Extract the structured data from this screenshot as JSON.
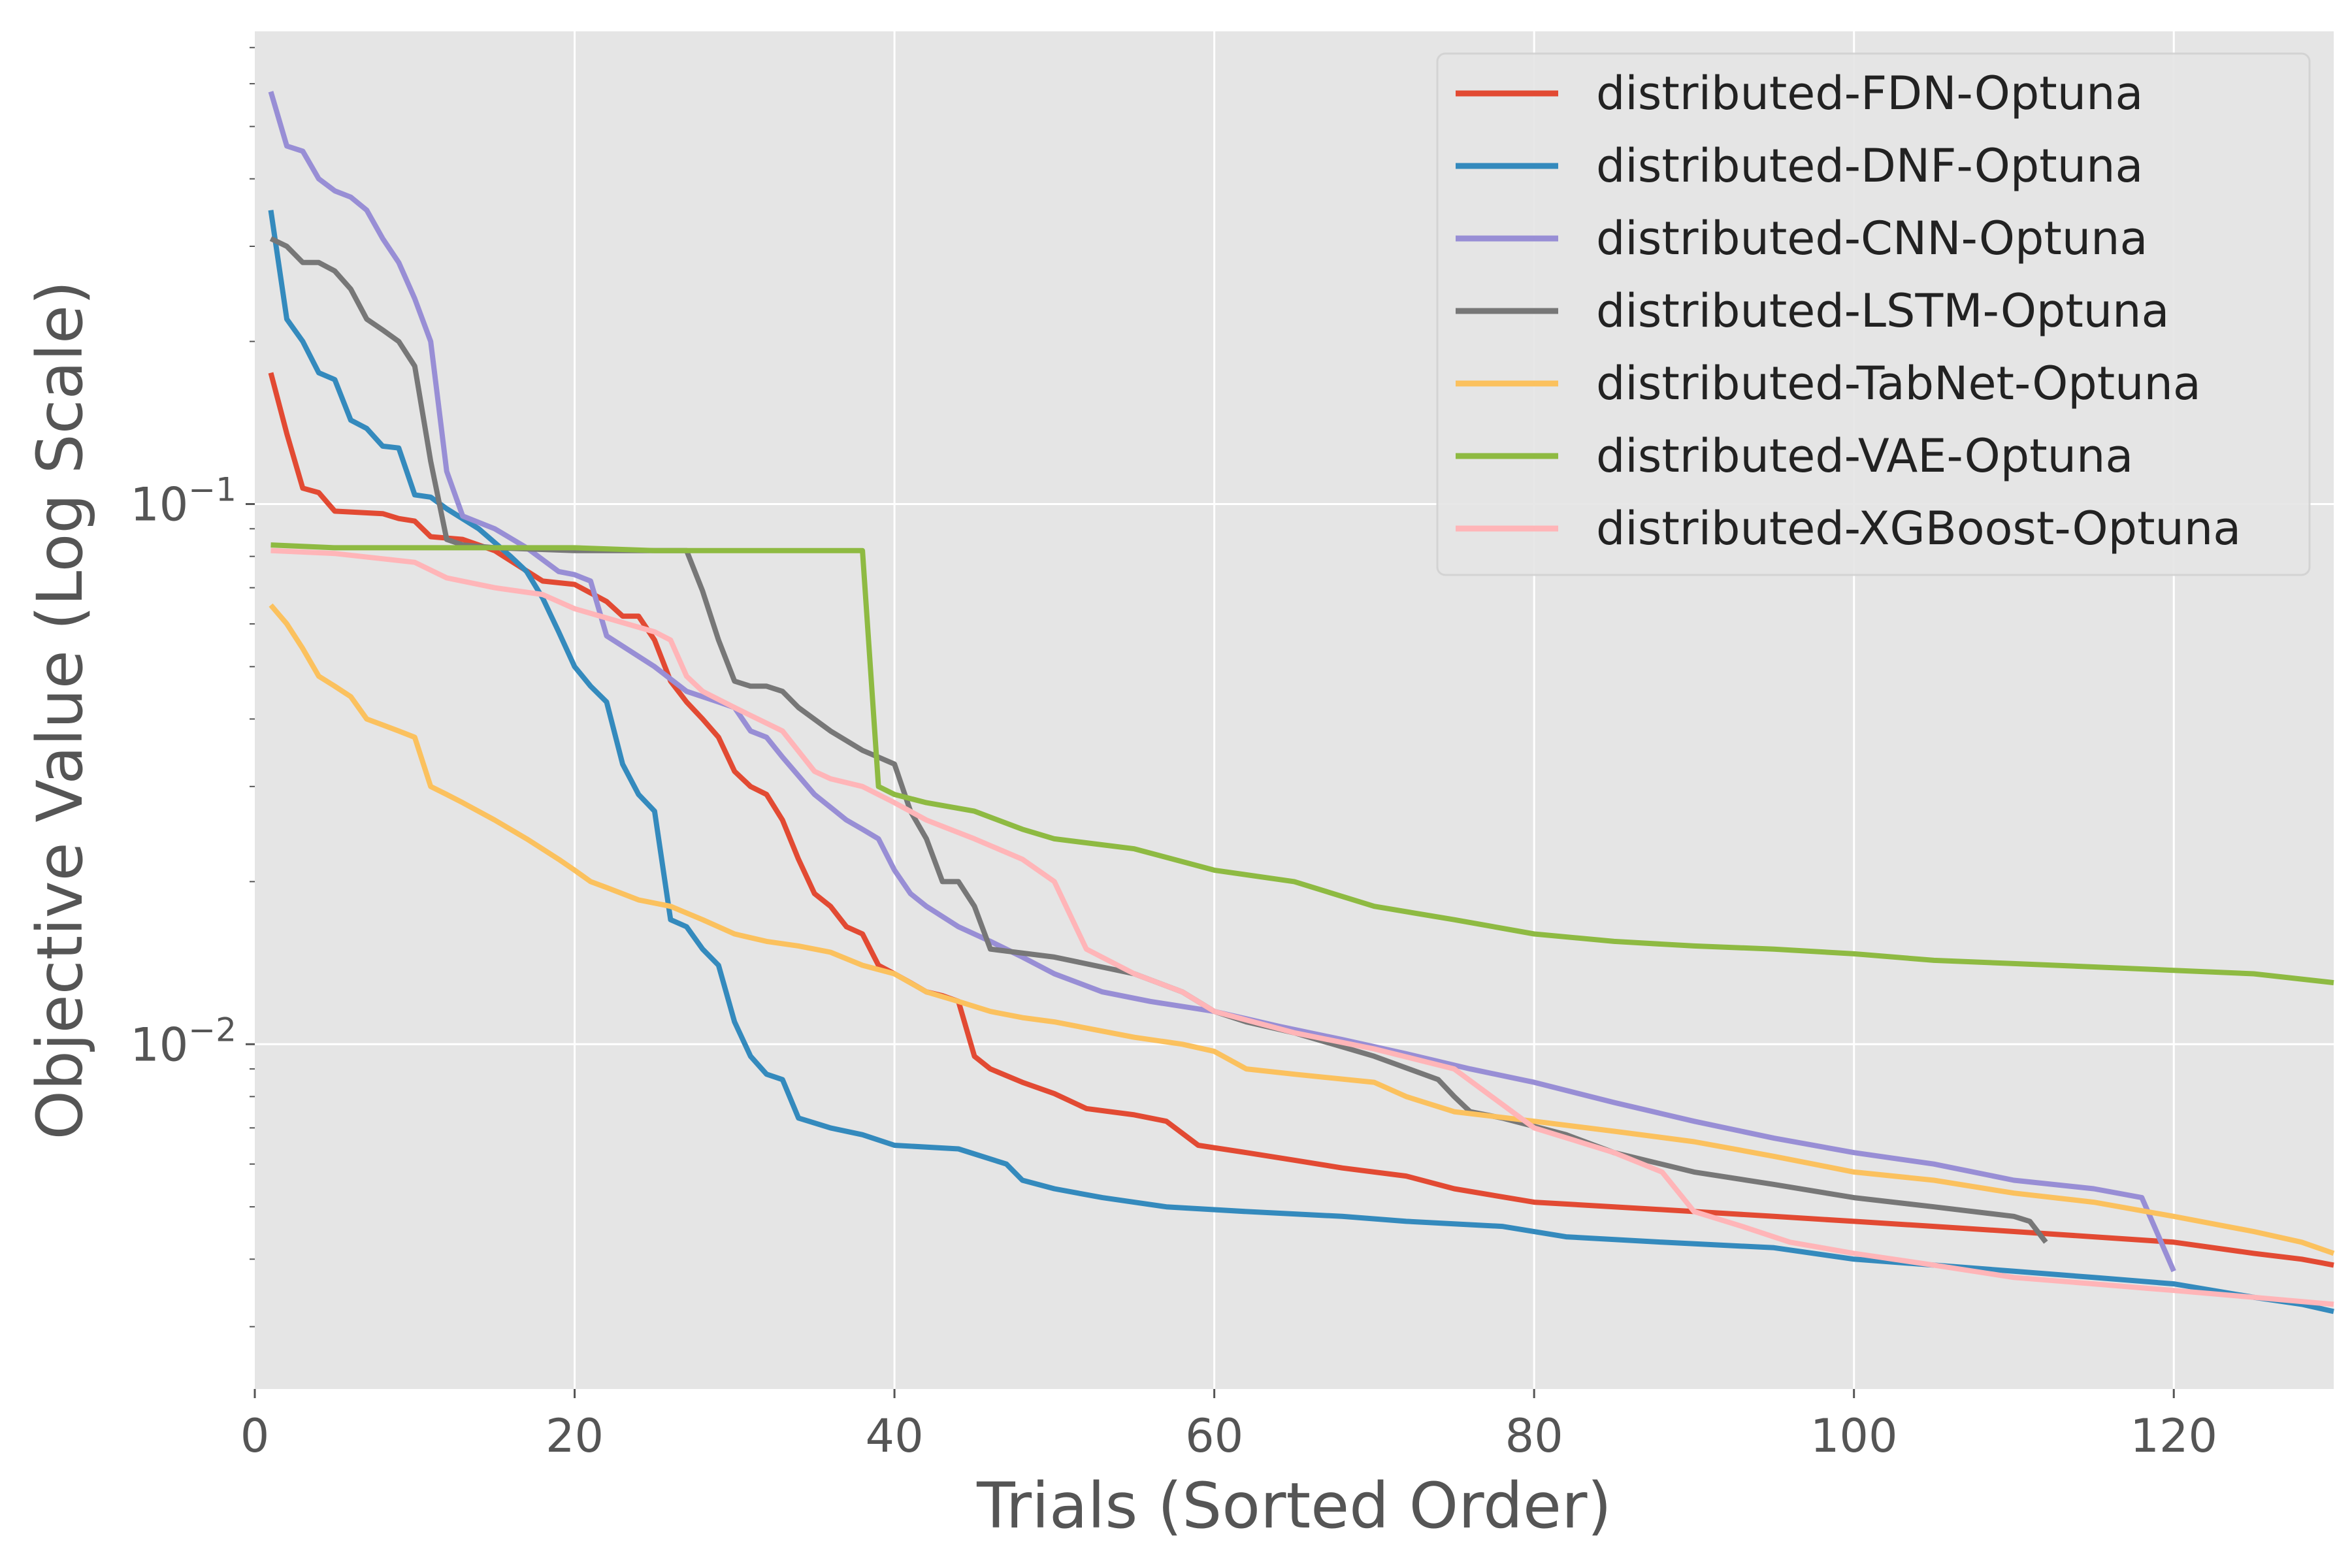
{
  "chart_data": {
    "type": "line",
    "title": "",
    "xlabel": "Trials (Sorted Order)",
    "ylabel": "Objective Value (Log Scale)",
    "xlim": [
      0,
      130
    ],
    "ylim": [
      0.0023,
      0.75
    ],
    "yscale": "log",
    "grid": true,
    "legend_position": "top-right",
    "background": "#e5e5e5",
    "x_ticks": [
      {
        "value": 0,
        "label": "0"
      },
      {
        "value": 20,
        "label": "20"
      },
      {
        "value": 40,
        "label": "40"
      },
      {
        "value": 60,
        "label": "60"
      },
      {
        "value": 80,
        "label": "80"
      },
      {
        "value": 100,
        "label": "100"
      },
      {
        "value": 120,
        "label": "120"
      }
    ],
    "y_ticks": [
      {
        "value": 0.1,
        "base": "10",
        "exp": "−1"
      },
      {
        "value": 0.01,
        "base": "10",
        "exp": "−2"
      }
    ],
    "series": [
      {
        "name": "distributed-FDN-Optuna",
        "color": "#E24A33",
        "x": [
          1,
          2,
          3,
          4,
          5,
          8,
          9,
          10,
          11,
          13,
          15,
          18,
          20,
          22,
          23,
          24,
          25,
          26,
          27,
          28,
          29,
          30,
          31,
          32,
          33,
          34,
          35,
          36,
          37,
          38,
          39,
          40,
          41,
          42,
          43,
          44,
          45,
          46,
          48,
          50,
          52,
          55,
          57,
          59,
          62,
          65,
          68,
          72,
          75,
          80,
          85,
          90,
          95,
          100,
          105,
          110,
          115,
          120,
          125,
          128,
          130
        ],
        "y": [
          0.175,
          0.135,
          0.107,
          0.105,
          0.097,
          0.096,
          0.094,
          0.093,
          0.087,
          0.086,
          0.082,
          0.072,
          0.071,
          0.066,
          0.062,
          0.062,
          0.056,
          0.047,
          0.043,
          0.04,
          0.037,
          0.032,
          0.03,
          0.029,
          0.026,
          0.022,
          0.019,
          0.018,
          0.0165,
          0.016,
          0.014,
          0.0135,
          0.013,
          0.0125,
          0.0123,
          0.012,
          0.0095,
          0.009,
          0.0085,
          0.0081,
          0.0076,
          0.0074,
          0.0072,
          0.0065,
          0.0063,
          0.0061,
          0.0059,
          0.0057,
          0.0054,
          0.0051,
          0.005,
          0.0049,
          0.0048,
          0.0047,
          0.0046,
          0.0045,
          0.0044,
          0.0043,
          0.0041,
          0.004,
          0.0039
        ]
      },
      {
        "name": "distributed-DNF-Optuna",
        "color": "#348ABD",
        "x": [
          1,
          2,
          3,
          4,
          5,
          6,
          7,
          8,
          9,
          10,
          11,
          12,
          14,
          16,
          17,
          18,
          19,
          20,
          21,
          22,
          23,
          24,
          25,
          26,
          27,
          28,
          29,
          30,
          31,
          32,
          33,
          34,
          36,
          38,
          40,
          44,
          47,
          48,
          50,
          53,
          57,
          62,
          68,
          72,
          78,
          82,
          88,
          95,
          100,
          105,
          110,
          115,
          120,
          125,
          128,
          130
        ],
        "y": [
          0.35,
          0.22,
          0.2,
          0.175,
          0.17,
          0.143,
          0.138,
          0.128,
          0.127,
          0.104,
          0.103,
          0.098,
          0.09,
          0.08,
          0.075,
          0.067,
          0.058,
          0.05,
          0.046,
          0.043,
          0.033,
          0.029,
          0.027,
          0.017,
          0.0165,
          0.015,
          0.014,
          0.011,
          0.0095,
          0.0088,
          0.0086,
          0.0073,
          0.007,
          0.0068,
          0.0065,
          0.0064,
          0.006,
          0.0056,
          0.0054,
          0.0052,
          0.005,
          0.0049,
          0.0048,
          0.0047,
          0.0046,
          0.0044,
          0.0043,
          0.0042,
          0.004,
          0.0039,
          0.0038,
          0.0037,
          0.0036,
          0.0034,
          0.0033,
          0.0032
        ]
      },
      {
        "name": "distributed-CNN-Optuna",
        "color": "#988ED5",
        "x": [
          1,
          2,
          3,
          4,
          5,
          6,
          7,
          8,
          9,
          10,
          11,
          12,
          13,
          15,
          17,
          19,
          20,
          21,
          22,
          25,
          27,
          29,
          30,
          31,
          32,
          33,
          35,
          37,
          38,
          39,
          40,
          41,
          42,
          44,
          46,
          48,
          50,
          53,
          56,
          60,
          64,
          68,
          72,
          76,
          80,
          85,
          90,
          95,
          100,
          105,
          110,
          115,
          118,
          120
        ],
        "y": [
          0.58,
          0.46,
          0.45,
          0.4,
          0.38,
          0.37,
          0.35,
          0.31,
          0.28,
          0.24,
          0.2,
          0.115,
          0.095,
          0.09,
          0.083,
          0.075,
          0.074,
          0.072,
          0.057,
          0.05,
          0.045,
          0.043,
          0.042,
          0.038,
          0.037,
          0.034,
          0.029,
          0.026,
          0.025,
          0.024,
          0.021,
          0.019,
          0.018,
          0.0165,
          0.0155,
          0.0145,
          0.0135,
          0.0125,
          0.012,
          0.0115,
          0.0108,
          0.0102,
          0.0096,
          0.009,
          0.0085,
          0.0078,
          0.0072,
          0.0067,
          0.0063,
          0.006,
          0.0056,
          0.0054,
          0.0052,
          0.0038
        ]
      },
      {
        "name": "distributed-LSTM-Optuna",
        "color": "#777777",
        "x": [
          1,
          2,
          3,
          4,
          5,
          6,
          7,
          8,
          9,
          10,
          11,
          12,
          13,
          15,
          20,
          24,
          26,
          27,
          28,
          29,
          30,
          31,
          32,
          33,
          34,
          36,
          38,
          39,
          40,
          41,
          42,
          43,
          44,
          45,
          46,
          50,
          55,
          58,
          60,
          62,
          65,
          70,
          74,
          75,
          76,
          78,
          82,
          85,
          90,
          95,
          100,
          105,
          110,
          111,
          112
        ],
        "y": [
          0.31,
          0.3,
          0.28,
          0.28,
          0.27,
          0.25,
          0.22,
          0.21,
          0.2,
          0.18,
          0.12,
          0.086,
          0.084,
          0.083,
          0.082,
          0.082,
          0.082,
          0.082,
          0.069,
          0.056,
          0.047,
          0.046,
          0.046,
          0.045,
          0.042,
          0.038,
          0.035,
          0.034,
          0.033,
          0.027,
          0.024,
          0.02,
          0.02,
          0.018,
          0.015,
          0.0145,
          0.0135,
          0.0125,
          0.0115,
          0.011,
          0.0105,
          0.0095,
          0.0086,
          0.008,
          0.0075,
          0.0073,
          0.0068,
          0.0063,
          0.0058,
          0.0055,
          0.0052,
          0.005,
          0.0048,
          0.0047,
          0.0043
        ]
      },
      {
        "name": "distributed-TabNet-Optuna",
        "color": "#FBC15E",
        "x": [
          1,
          2,
          3,
          4,
          5,
          6,
          7,
          8,
          9,
          10,
          11,
          12,
          13,
          15,
          17,
          19,
          20,
          21,
          22,
          24,
          26,
          28,
          30,
          32,
          34,
          36,
          38,
          40,
          42,
          44,
          46,
          48,
          50,
          55,
          58,
          60,
          62,
          65,
          70,
          72,
          75,
          80,
          85,
          90,
          95,
          100,
          105,
          110,
          115,
          120,
          125,
          128,
          130
        ],
        "y": [
          0.065,
          0.06,
          0.054,
          0.048,
          0.046,
          0.044,
          0.04,
          0.039,
          0.038,
          0.037,
          0.03,
          0.029,
          0.028,
          0.026,
          0.024,
          0.022,
          0.021,
          0.02,
          0.0195,
          0.0185,
          0.018,
          0.017,
          0.016,
          0.0155,
          0.0152,
          0.0148,
          0.014,
          0.0135,
          0.0125,
          0.012,
          0.0115,
          0.0112,
          0.011,
          0.0103,
          0.01,
          0.0097,
          0.009,
          0.0088,
          0.0085,
          0.008,
          0.0075,
          0.0072,
          0.0069,
          0.0066,
          0.0062,
          0.0058,
          0.0056,
          0.0053,
          0.0051,
          0.0048,
          0.0045,
          0.0043,
          0.0041
        ]
      },
      {
        "name": "distributed-VAE-Optuna",
        "color": "#8EBA42",
        "x": [
          1,
          5,
          10,
          15,
          20,
          25,
          30,
          35,
          38,
          39,
          40,
          42,
          45,
          48,
          50,
          55,
          60,
          65,
          70,
          75,
          80,
          85,
          90,
          95,
          100,
          105,
          110,
          115,
          120,
          125,
          130
        ],
        "y": [
          0.084,
          0.083,
          0.083,
          0.083,
          0.083,
          0.082,
          0.082,
          0.082,
          0.082,
          0.03,
          0.029,
          0.028,
          0.027,
          0.025,
          0.024,
          0.023,
          0.021,
          0.02,
          0.018,
          0.017,
          0.016,
          0.0155,
          0.0152,
          0.015,
          0.0147,
          0.0143,
          0.0141,
          0.0139,
          0.0137,
          0.0135,
          0.013
        ]
      },
      {
        "name": "distributed-XGBoost-Optuna",
        "color": "#FFB5B8",
        "x": [
          1,
          5,
          10,
          12,
          15,
          18,
          20,
          25,
          26,
          27,
          28,
          30,
          33,
          35,
          36,
          38,
          40,
          42,
          45,
          48,
          50,
          52,
          55,
          58,
          60,
          65,
          70,
          75,
          80,
          85,
          88,
          90,
          93,
          96,
          100,
          105,
          110,
          115,
          120,
          125,
          130
        ],
        "y": [
          0.082,
          0.081,
          0.078,
          0.073,
          0.07,
          0.068,
          0.064,
          0.058,
          0.056,
          0.048,
          0.045,
          0.042,
          0.038,
          0.032,
          0.031,
          0.03,
          0.028,
          0.026,
          0.024,
          0.022,
          0.02,
          0.015,
          0.0135,
          0.0125,
          0.0115,
          0.0105,
          0.0098,
          0.009,
          0.007,
          0.0063,
          0.0058,
          0.0049,
          0.0046,
          0.0043,
          0.0041,
          0.0039,
          0.0037,
          0.0036,
          0.0035,
          0.0034,
          0.0033
        ]
      }
    ]
  }
}
